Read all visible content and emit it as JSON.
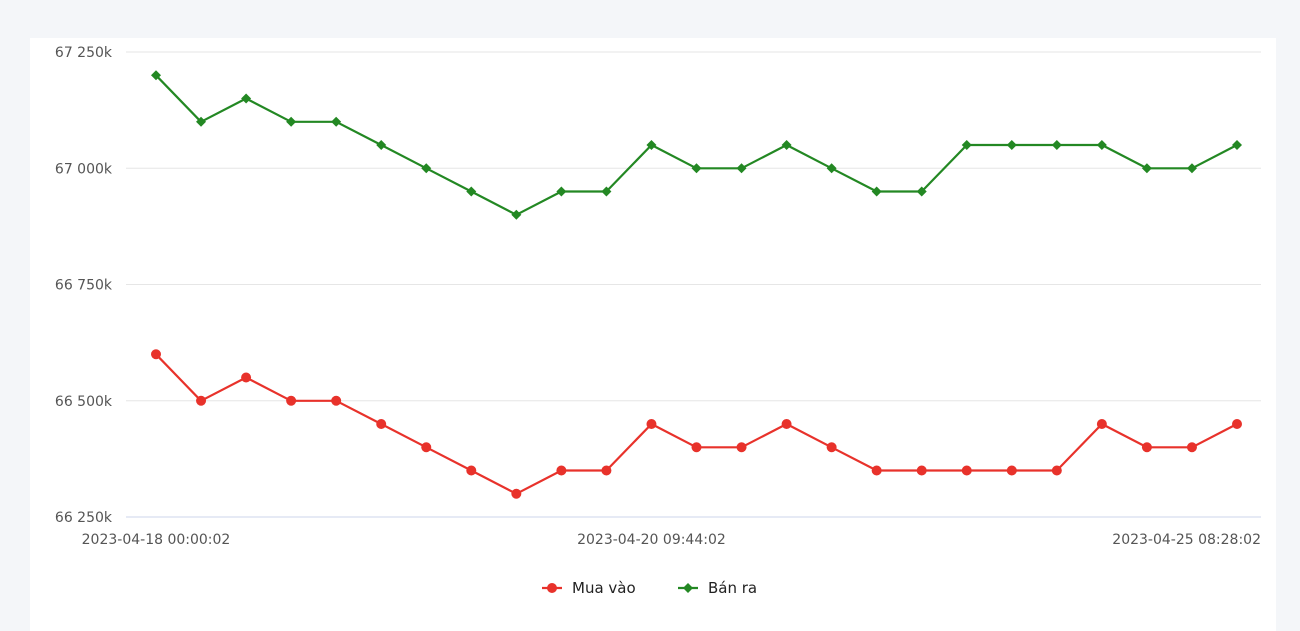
{
  "chart_data": {
    "type": "line",
    "title": "",
    "xlabel": "",
    "ylabel": "",
    "ylim": [
      66250,
      67250
    ],
    "y_tick_values": [
      66250,
      66500,
      66750,
      67000,
      67250
    ],
    "y_tick_labels": [
      "66 250k",
      "66 500k",
      "66 750k",
      "67 000k",
      "67 250k"
    ],
    "x_tick_labels": [
      {
        "index": 0,
        "label": "2023-04-18 00:00:02"
      },
      {
        "index": 11,
        "label": "2023-04-20 09:44:02"
      },
      {
        "index": 24,
        "label": "2023-04-25 08:28:02"
      }
    ],
    "point_count": 25,
    "grid": true,
    "legend_position": "bottom",
    "series": [
      {
        "name": "Mua vào",
        "color": "#e8322b",
        "marker": "circle",
        "values": [
          66600,
          66500,
          66550,
          66500,
          66500,
          66450,
          66400,
          66350,
          66300,
          66350,
          66350,
          66450,
          66400,
          66400,
          66450,
          66400,
          66350,
          66350,
          66350,
          66350,
          66350,
          66450,
          66400,
          66400,
          66450
        ]
      },
      {
        "name": "Bán ra",
        "color": "#238823",
        "marker": "diamond",
        "values": [
          67200,
          67100,
          67150,
          67100,
          67100,
          67050,
          67000,
          66950,
          66900,
          66950,
          66950,
          67050,
          67000,
          67000,
          67050,
          67000,
          66950,
          66950,
          67050,
          67050,
          67050,
          67050,
          67000,
          67000,
          67050
        ]
      }
    ]
  }
}
